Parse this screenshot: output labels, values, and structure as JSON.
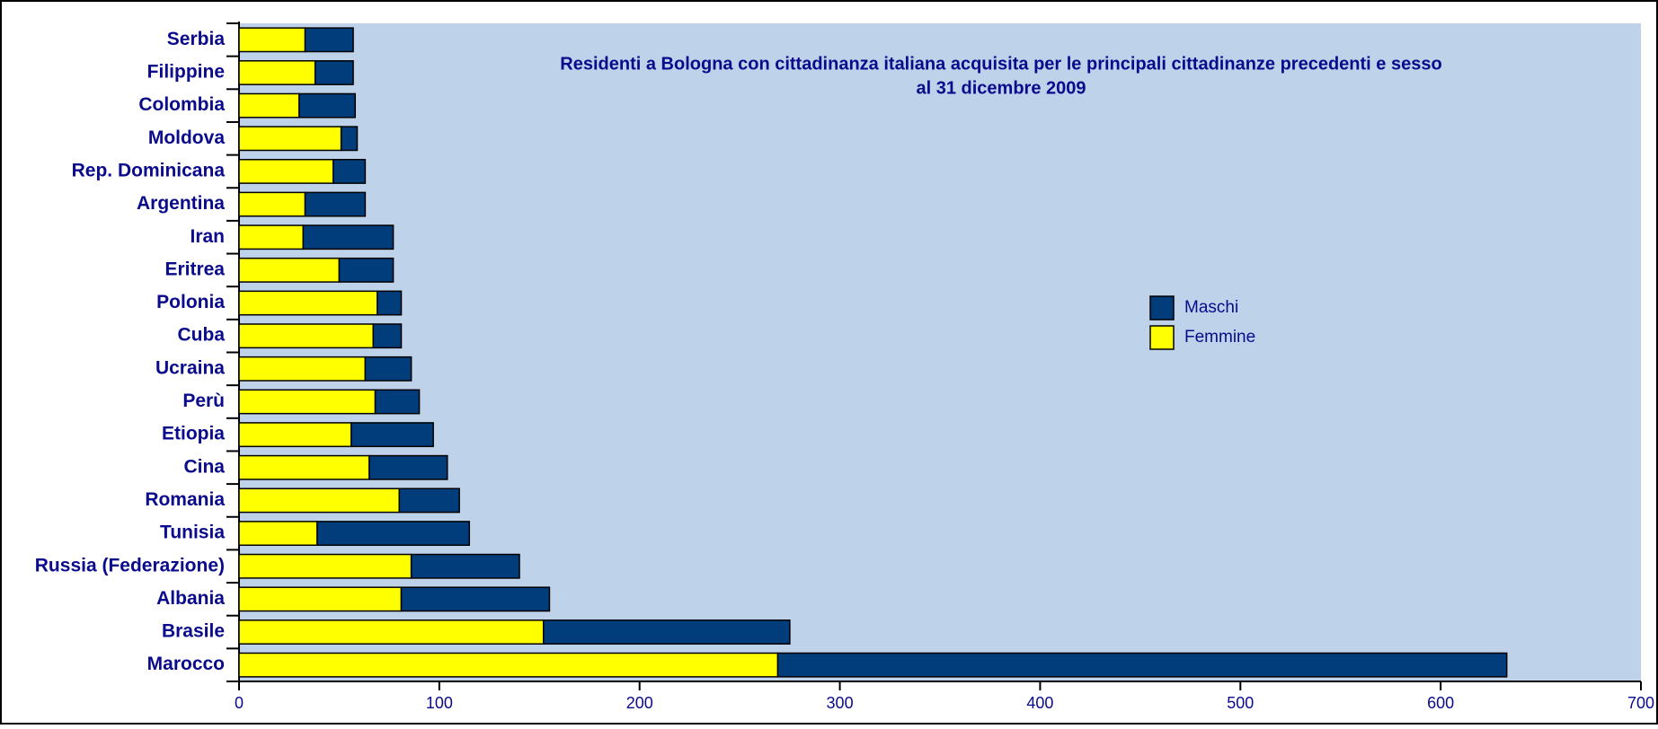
{
  "chart_data": {
    "type": "stacked-barh",
    "title": [
      "Residenti a Bologna con cittadinanza italiana acquisita per le principali cittadinanze precedenti e sesso",
      "al 31 dicembre 2009"
    ],
    "categories": [
      "Serbia",
      "Filippine",
      "Colombia",
      "Moldova",
      "Rep. Dominicana",
      "Argentina",
      "Iran",
      "Eritrea",
      "Polonia",
      "Cuba",
      "Ucraina",
      "Perù",
      "Etiopia",
      "Cina",
      "Romania",
      "Tunisia",
      "Russia (Federazione)",
      "Albania",
      "Brasile",
      "Marocco"
    ],
    "series": [
      {
        "name": "Femmine",
        "color": "#ffff00",
        "values": [
          33,
          38,
          30,
          51,
          47,
          33,
          32,
          50,
          69,
          67,
          63,
          68,
          56,
          65,
          80,
          39,
          86,
          81,
          152,
          269
        ]
      },
      {
        "name": "Maschi",
        "color": "#003d7a",
        "values": [
          24,
          19,
          28,
          8,
          16,
          30,
          45,
          27,
          12,
          14,
          23,
          22,
          41,
          39,
          30,
          76,
          54,
          74,
          123,
          364
        ]
      }
    ],
    "xlim": [
      0,
      700
    ],
    "xticks": [
      0,
      100,
      200,
      300,
      400,
      500,
      600,
      700
    ],
    "legend": "right",
    "plot_background": "#bed3ea"
  }
}
